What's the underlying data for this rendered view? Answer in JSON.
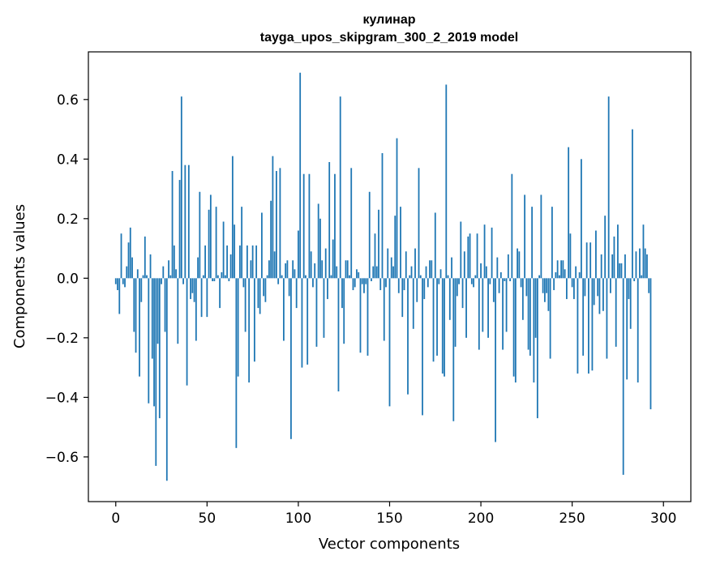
{
  "chart_data": {
    "type": "bar",
    "title": "кулинар",
    "subtitle": "tayga_upos_skipgram_300_2_2019 model",
    "xlabel": "Vector components",
    "ylabel": "Components values",
    "xlim": [
      -15,
      315
    ],
    "ylim": [
      -0.75,
      0.76
    ],
    "xticks": [
      0,
      50,
      100,
      150,
      200,
      250,
      300
    ],
    "xtick_labels": [
      "0",
      "50",
      "100",
      "150",
      "200",
      "250",
      "300"
    ],
    "yticks": [
      -0.6,
      -0.4,
      -0.2,
      0.0,
      0.2,
      0.4,
      0.6
    ],
    "ytick_labels": [
      "−0.6",
      "−0.4",
      "−0.2",
      "0.0",
      "0.2",
      "0.4",
      "0.6"
    ],
    "bar_color": "#1f77b4",
    "grid": false,
    "values": [
      -0.02,
      -0.04,
      -0.12,
      0.15,
      -0.02,
      -0.03,
      0.04,
      0.12,
      0.17,
      0.07,
      -0.18,
      -0.25,
      0.03,
      -0.33,
      -0.08,
      0.01,
      0.14,
      0.01,
      -0.42,
      0.08,
      -0.27,
      -0.43,
      -0.63,
      -0.22,
      -0.47,
      -0.02,
      0.04,
      -0.18,
      -0.68,
      0.06,
      0.01,
      0.36,
      0.11,
      0.03,
      -0.22,
      0.33,
      0.61,
      -0.02,
      0.38,
      -0.36,
      0.38,
      -0.07,
      -0.05,
      -0.08,
      -0.21,
      0.07,
      0.29,
      -0.13,
      0.01,
      0.11,
      -0.13,
      0.23,
      0.28,
      -0.01,
      -0.01,
      0.24,
      0.01,
      -0.1,
      0.02,
      0.19,
      0.01,
      0.11,
      -0.01,
      0.08,
      0.41,
      0.18,
      -0.57,
      -0.33,
      0.11,
      0.24,
      -0.03,
      -0.18,
      0.11,
      -0.35,
      0.06,
      0.11,
      -0.28,
      0.11,
      -0.1,
      -0.12,
      0.22,
      -0.06,
      -0.08,
      0.01,
      0.06,
      0.26,
      0.41,
      0.09,
      0.36,
      -0.02,
      0.37,
      0.01,
      -0.21,
      0.05,
      0.06,
      -0.06,
      -0.54,
      0.06,
      0.03,
      -0.1,
      0.16,
      0.69,
      -0.3,
      0.35,
      0.01,
      -0.29,
      0.35,
      0.09,
      -0.03,
      0.05,
      -0.23,
      0.25,
      0.2,
      0.06,
      -0.2,
      0.1,
      -0.07,
      0.39,
      0.01,
      0.13,
      0.35,
      0.04,
      -0.38,
      0.61,
      -0.1,
      -0.22,
      0.06,
      0.06,
      0.01,
      0.37,
      -0.04,
      -0.03,
      0.03,
      0.02,
      -0.25,
      -0.02,
      -0.05,
      -0.02,
      -0.26,
      0.29,
      -0.01,
      0.04,
      0.15,
      0.04,
      0.23,
      -0.04,
      0.42,
      -0.21,
      -0.03,
      0.1,
      -0.43,
      0.07,
      0.04,
      0.21,
      0.47,
      -0.05,
      0.24,
      -0.13,
      -0.04,
      0.09,
      -0.39,
      0.01,
      0.04,
      -0.17,
      0.1,
      -0.08,
      0.37,
      0.01,
      -0.46,
      -0.07,
      0.04,
      -0.03,
      0.06,
      0.06,
      -0.28,
      0.22,
      -0.26,
      -0.02,
      0.03,
      -0.32,
      -0.33,
      0.65,
      0.01,
      -0.14,
      0.07,
      -0.48,
      -0.23,
      -0.06,
      -0.02,
      0.19,
      -0.1,
      0.09,
      -0.2,
      0.14,
      0.15,
      -0.02,
      -0.03,
      0.01,
      0.15,
      -0.24,
      0.05,
      -0.18,
      0.18,
      0.04,
      -0.2,
      -0.02,
      0.17,
      -0.08,
      -0.55,
      0.07,
      -0.05,
      0.02,
      -0.24,
      -0.01,
      -0.18,
      0.08,
      -0.01,
      0.35,
      -0.33,
      -0.35,
      0.1,
      0.09,
      -0.03,
      -0.14,
      0.28,
      -0.06,
      -0.24,
      -0.26,
      0.24,
      -0.35,
      -0.2,
      -0.47,
      0.01,
      0.28,
      -0.05,
      -0.08,
      -0.05,
      -0.11,
      -0.27,
      0.24,
      -0.04,
      0.02,
      0.06,
      0.01,
      0.06,
      0.06,
      0.03,
      -0.07,
      0.44,
      0.15,
      -0.03,
      -0.07,
      0.04,
      -0.32,
      0.02,
      0.4,
      -0.26,
      -0.06,
      0.12,
      -0.32,
      0.12,
      -0.31,
      -0.09,
      0.16,
      -0.06,
      -0.12,
      0.08,
      -0.11,
      0.21,
      -0.27,
      0.61,
      -0.05,
      0.08,
      0.14,
      -0.23,
      0.18,
      0.05,
      0.05,
      -0.66,
      0.08,
      -0.34,
      -0.07,
      -0.17,
      0.5,
      -0.01,
      0.09,
      -0.35,
      0.1,
      0.01,
      0.18,
      0.1,
      0.08,
      -0.05,
      -0.44
    ]
  }
}
